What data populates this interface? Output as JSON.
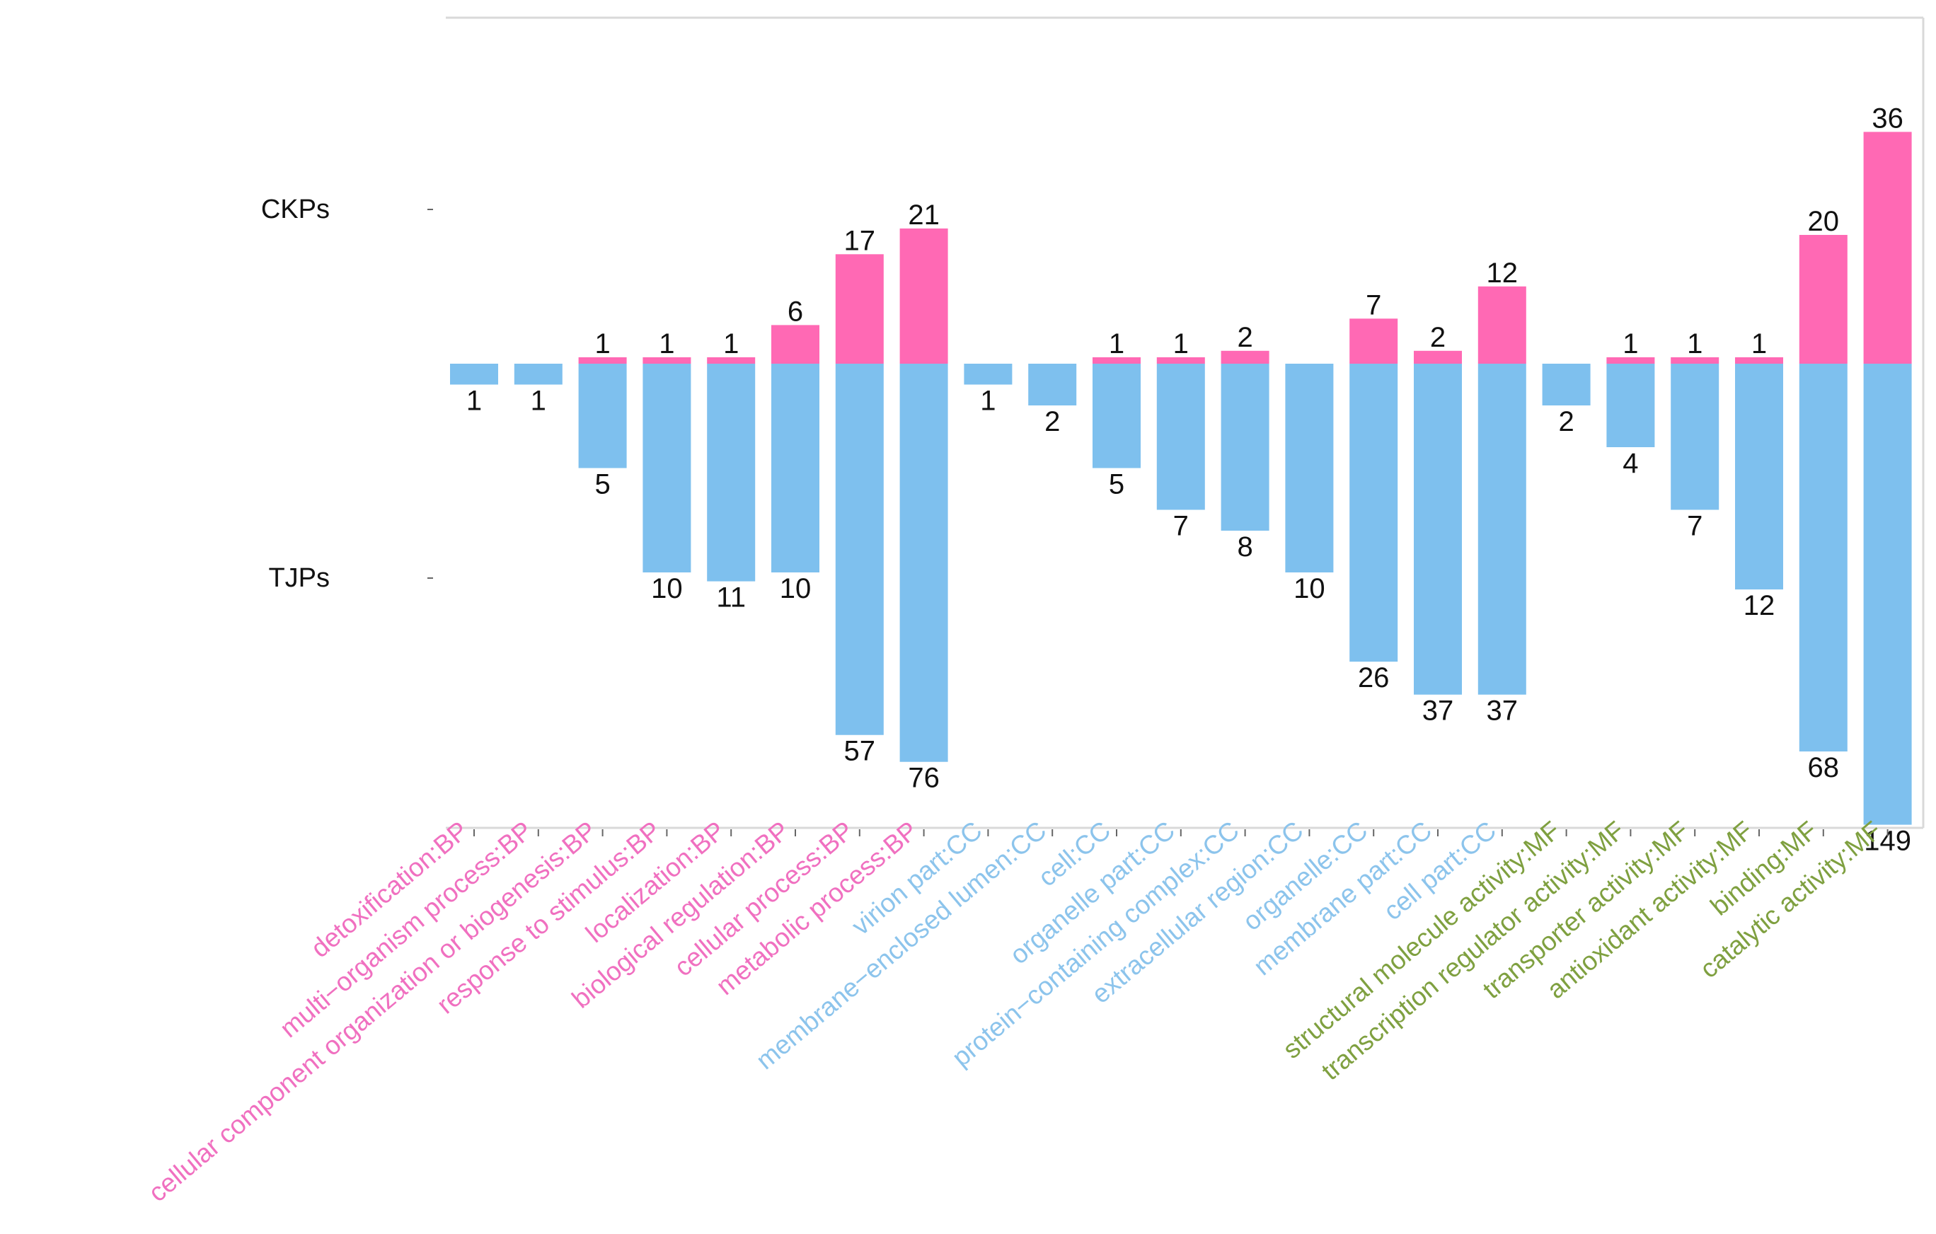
{
  "chart_data": {
    "type": "bar",
    "subtype": "diverging",
    "series": [
      {
        "name": "CKPs",
        "color": "#FF69B4",
        "values": [
          0,
          0,
          1,
          1,
          1,
          6,
          17,
          21,
          0,
          0,
          1,
          1,
          2,
          0,
          7,
          2,
          12,
          0,
          1,
          1,
          1,
          20,
          36
        ],
        "direction": "up"
      },
      {
        "name": "TJPs",
        "color": "#7EC0EE",
        "values": [
          1,
          1,
          5,
          10,
          11,
          10,
          57,
          76,
          1,
          2,
          5,
          7,
          8,
          10,
          26,
          37,
          37,
          2,
          4,
          7,
          12,
          68,
          149
        ],
        "direction": "down"
      }
    ],
    "categories": [
      "detoxification:BP",
      "multi−organism process:BP",
      "cellular component organization or biogenesis:BP",
      "response to stimulus:BP",
      "localization:BP",
      "biological regulation:BP",
      "cellular process:BP",
      "metabolic process:BP",
      "virion part:CC",
      "membrane−enclosed lumen:CC",
      "cell:CC",
      "organelle part:CC",
      "protein−containing complex:CC",
      "extracellular region:CC",
      "organelle:CC",
      "membrane part:CC",
      "cell part:CC",
      "structural molecule activity:MF",
      "transcription regulator activity:MF",
      "transporter activity:MF",
      "antioxidant activity:MF",
      "binding:MF",
      "catalytic activity:MF"
    ],
    "category_groups": [
      "BP",
      "BP",
      "BP",
      "BP",
      "BP",
      "BP",
      "BP",
      "BP",
      "CC",
      "CC",
      "CC",
      "CC",
      "CC",
      "CC",
      "CC",
      "CC",
      "CC",
      "MF",
      "MF",
      "MF",
      "MF",
      "MF",
      "MF"
    ],
    "group_colors": {
      "BP": "#F070C0",
      "CC": "#8CC4EC",
      "MF": "#7FA040"
    },
    "y_tick_labels": [
      "CKPs",
      "TJPs"
    ],
    "title": "",
    "xlabel": "",
    "ylabel": ""
  }
}
